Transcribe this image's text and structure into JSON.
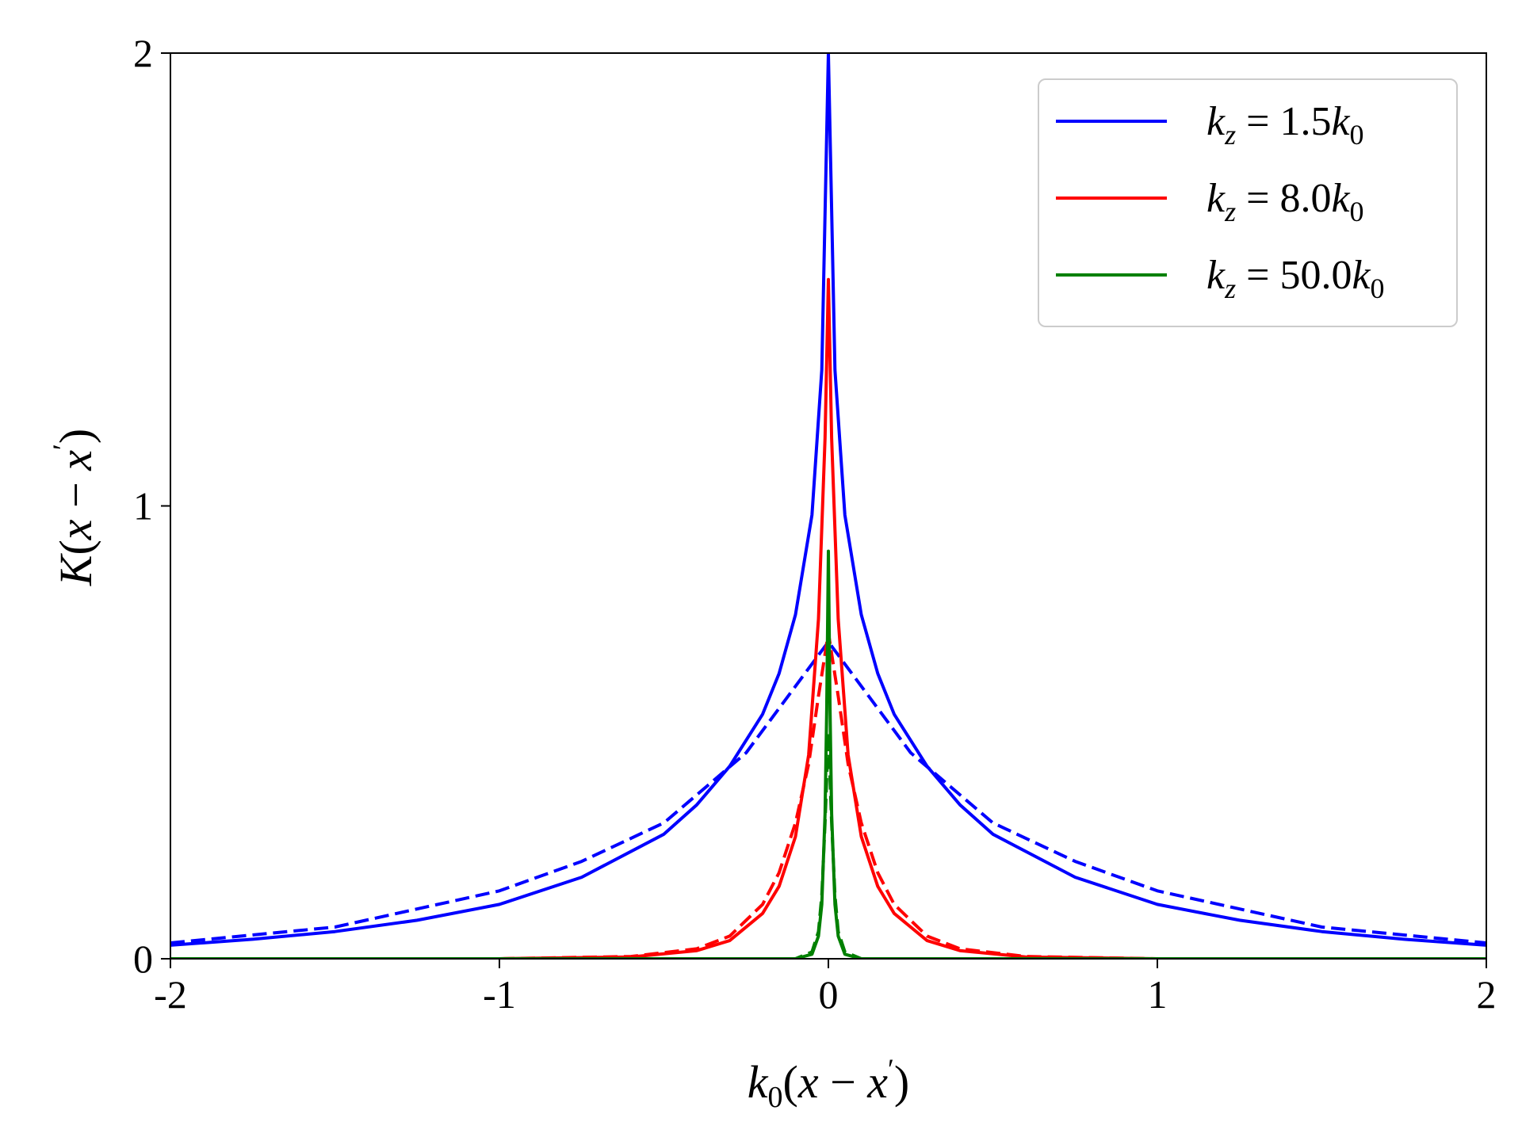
{
  "chart_data": {
    "type": "line",
    "xlabel": "k0(x − x′)",
    "ylabel": "K(x − x′)",
    "xlim": [
      -2,
      2
    ],
    "ylim": [
      0,
      2
    ],
    "x_ticks": [
      -2,
      -1,
      0,
      1,
      2
    ],
    "x_tick_labels": [
      "-2",
      "-1",
      "0",
      "1",
      "2"
    ],
    "y_ticks": [
      0,
      1,
      2
    ],
    "y_tick_labels": [
      "0",
      "1",
      "2"
    ],
    "grid": false,
    "legend_position": "top-right",
    "legend": [
      {
        "kz": "1.5",
        "color": "#0000ff"
      },
      {
        "kz": "8.0",
        "color": "#ff0000"
      },
      {
        "kz": "50.0",
        "color": "#008000"
      }
    ],
    "series": [
      {
        "label": "kz = 1.5k0",
        "style": "solid",
        "color": "#0000ff",
        "x": [
          -2.0,
          -1.75,
          -1.5,
          -1.25,
          -1.0,
          -0.75,
          -0.5,
          -0.4,
          -0.3,
          -0.2,
          -0.15,
          -0.1,
          -0.05,
          -0.02,
          0.0,
          0.02,
          0.05,
          0.1,
          0.15,
          0.2,
          0.3,
          0.4,
          0.5,
          0.75,
          1.0,
          1.25,
          1.5,
          1.75,
          2.0
        ],
        "y": [
          0.03,
          0.043,
          0.06,
          0.085,
          0.12,
          0.18,
          0.275,
          0.34,
          0.425,
          0.54,
          0.63,
          0.76,
          0.98,
          1.3,
          2.0,
          1.3,
          0.98,
          0.76,
          0.63,
          0.54,
          0.425,
          0.34,
          0.275,
          0.18,
          0.12,
          0.085,
          0.06,
          0.043,
          0.03
        ]
      },
      {
        "label": "kz = 1.5k0 (dashed)",
        "style": "dashed",
        "color": "#0000ff",
        "x": [
          -2.0,
          -1.5,
          -1.0,
          -0.75,
          -0.5,
          -0.25,
          0.0,
          0.25,
          0.5,
          0.75,
          1.0,
          1.5,
          2.0
        ],
        "y": [
          0.035,
          0.07,
          0.15,
          0.215,
          0.3,
          0.455,
          0.7,
          0.455,
          0.3,
          0.215,
          0.15,
          0.07,
          0.035
        ]
      },
      {
        "label": "kz = 8.0k0",
        "style": "solid",
        "color": "#ff0000",
        "x": [
          -2.0,
          -1.0,
          -0.6,
          -0.4,
          -0.3,
          -0.2,
          -0.15,
          -0.1,
          -0.06,
          -0.03,
          -0.01,
          0.0,
          0.01,
          0.03,
          0.06,
          0.1,
          0.15,
          0.2,
          0.3,
          0.4,
          0.6,
          1.0,
          2.0
        ],
        "y": [
          0.0,
          0.0,
          0.004,
          0.018,
          0.04,
          0.1,
          0.16,
          0.27,
          0.45,
          0.75,
          1.15,
          1.5,
          1.15,
          0.75,
          0.45,
          0.27,
          0.16,
          0.1,
          0.04,
          0.018,
          0.004,
          0.0,
          0.0
        ]
      },
      {
        "label": "kz = 8.0k0 (dashed)",
        "style": "dashed",
        "color": "#ff0000",
        "x": [
          -2.0,
          -1.0,
          -0.6,
          -0.4,
          -0.3,
          -0.2,
          -0.15,
          -0.1,
          -0.06,
          -0.03,
          0.0,
          0.03,
          0.06,
          0.1,
          0.15,
          0.2,
          0.3,
          0.4,
          0.6,
          1.0,
          2.0
        ],
        "y": [
          0.0,
          0.0,
          0.005,
          0.022,
          0.05,
          0.12,
          0.19,
          0.3,
          0.43,
          0.58,
          0.72,
          0.58,
          0.43,
          0.3,
          0.19,
          0.12,
          0.05,
          0.022,
          0.005,
          0.0,
          0.0
        ]
      },
      {
        "label": "kz = 50.0k0",
        "style": "solid",
        "color": "#008000",
        "x": [
          -2.0,
          -0.1,
          -0.05,
          -0.03,
          -0.02,
          -0.01,
          -0.005,
          0.0,
          0.005,
          0.01,
          0.02,
          0.03,
          0.05,
          0.1,
          2.0
        ],
        "y": [
          0.0,
          0.0,
          0.01,
          0.05,
          0.12,
          0.32,
          0.55,
          0.9,
          0.55,
          0.32,
          0.12,
          0.05,
          0.01,
          0.0,
          0.0
        ]
      },
      {
        "label": "kz = 50.0k0 (dashed)",
        "style": "dashed",
        "color": "#008000",
        "x": [
          -2.0,
          -0.1,
          -0.05,
          -0.03,
          -0.02,
          -0.01,
          0.0,
          0.01,
          0.02,
          0.03,
          0.05,
          0.1,
          2.0
        ],
        "y": [
          0.0,
          0.0,
          0.015,
          0.06,
          0.14,
          0.3,
          0.5,
          0.3,
          0.14,
          0.06,
          0.015,
          0.0,
          0.0
        ]
      }
    ]
  }
}
